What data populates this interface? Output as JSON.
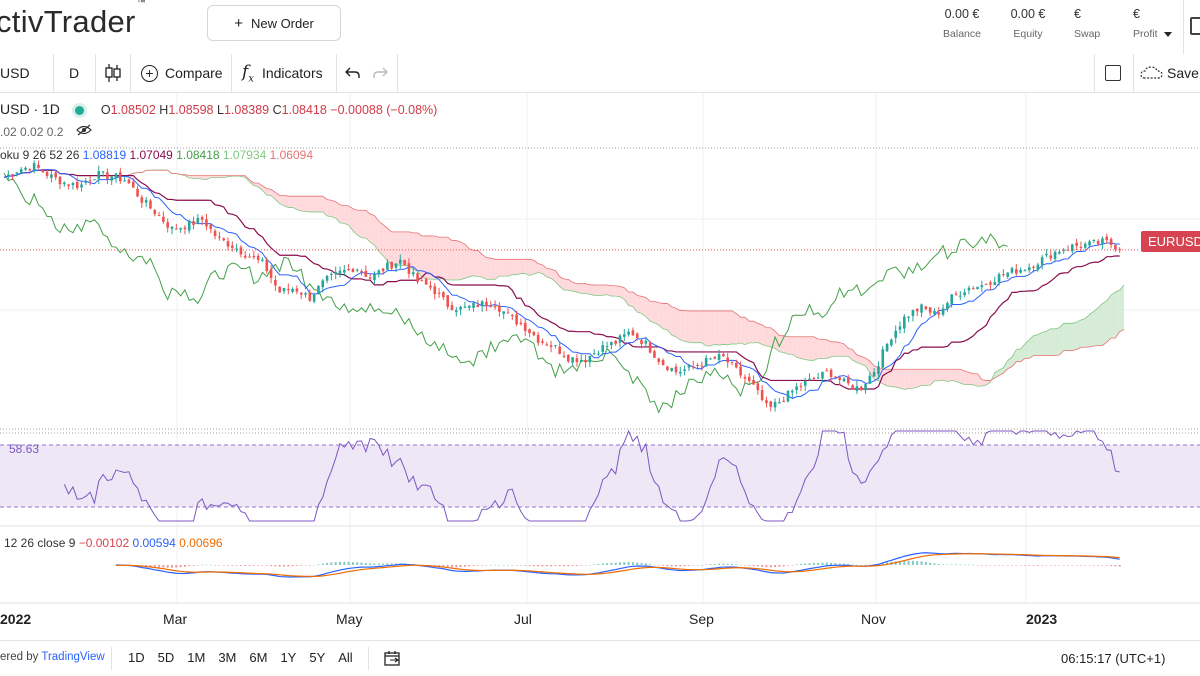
{
  "header": {
    "logo_text": "ctivTrader",
    "new_order_label": "New Order",
    "stats": [
      {
        "value": "0.00 €",
        "label": "Balance"
      },
      {
        "value": "0.00 €",
        "label": "Equity"
      },
      {
        "value": "€",
        "label": "Swap"
      },
      {
        "value": "€",
        "label": "Profit"
      }
    ]
  },
  "toolbar": {
    "symbol": "USD",
    "interval": "D",
    "compare_label": "Compare",
    "indicators_label": "Indicators",
    "save_label": "Save"
  },
  "legend": {
    "symbol_title": "USD · 1D",
    "open_label": "O",
    "open": "1.08502",
    "high_label": "H",
    "high": "1.08598",
    "low_label": "L",
    "low": "1.08389",
    "close_label": "C",
    "close": "1.08418",
    "change": "−0.00088 (−0.08%)",
    "line2": ".02 0.02 0.2",
    "ichimoku_label": "oku 9 26 52 26",
    "ichimoku_values": [
      "1.08819",
      "1.07049",
      "1.08418",
      "1.07934",
      "1.06094"
    ],
    "ichimoku_colors": [
      "#2962ff",
      "#880e4f",
      "#43a047",
      "#81c784",
      "#e57373"
    ],
    "rsi_value": "58.63",
    "macd_label": "12 26 close 9",
    "macd_values": [
      "−0.00102",
      "0.00594",
      "0.00696"
    ],
    "macd_colors": [
      "#d84351",
      "#2962ff",
      "#ef6c00"
    ]
  },
  "price_tag": "EURUSD",
  "xaxis": [
    "2022",
    "Mar",
    "May",
    "Jul",
    "Sep",
    "Nov",
    "2023"
  ],
  "footer": {
    "powered_prefix": "ered by ",
    "powered_brand": "TradingView",
    "ranges": [
      "1D",
      "5D",
      "1M",
      "3M",
      "6M",
      "1Y",
      "5Y",
      "All"
    ],
    "clock": "06:15:17 (UTC+1)"
  },
  "colors": {
    "up": "#26a69a",
    "down": "#ef5350",
    "conversion": "#2962ff",
    "base": "#880e4f",
    "lagging": "#43a047",
    "cloud_bull": "#c8e6c9",
    "cloud_bear": "#ffcdd2",
    "rsi": "#7e57c2",
    "rsi_band": "#ede7f6"
  },
  "chart_data": {
    "type": "candlestick",
    "symbol": "EURUSD",
    "interval": "1D",
    "ylim": [
      0.955,
      1.155
    ],
    "x_ticks": [
      "2022",
      "Mar",
      "May",
      "Jul",
      "Sep",
      "Nov",
      "2023"
    ],
    "close_series": {
      "start": "2022-01-01",
      "step_days": 7,
      "values": [
        1.134,
        1.14,
        1.142,
        1.135,
        1.13,
        1.128,
        1.136,
        1.135,
        1.132,
        1.118,
        1.108,
        1.097,
        1.1,
        1.104,
        1.09,
        1.085,
        1.078,
        1.072,
        1.052,
        1.055,
        1.048,
        1.06,
        1.066,
        1.07,
        1.062,
        1.07,
        1.075,
        1.06,
        1.055,
        1.043,
        1.04,
        1.043,
        1.045,
        1.035,
        1.028,
        1.018,
        1.013,
        1.005,
        1.004,
        1.012,
        1.016,
        1.024,
        1.015,
        1.002,
        0.995,
        0.998,
        1.003,
        1.006,
        0.995,
        0.985,
        0.968,
        0.976,
        0.985,
        0.99,
        0.995,
        0.987,
        0.983,
        0.997,
        1.02,
        1.035,
        1.041,
        1.036,
        1.048,
        1.055,
        1.057,
        1.063,
        1.067,
        1.07,
        1.076,
        1.082,
        1.085,
        1.086,
        1.088,
        1.084
      ]
    },
    "rsi": {
      "last": 58.63,
      "upper": 70,
      "lower": 30
    },
    "macd": {
      "macd": 0.00594,
      "signal": 0.00696,
      "hist": -0.00102
    }
  }
}
